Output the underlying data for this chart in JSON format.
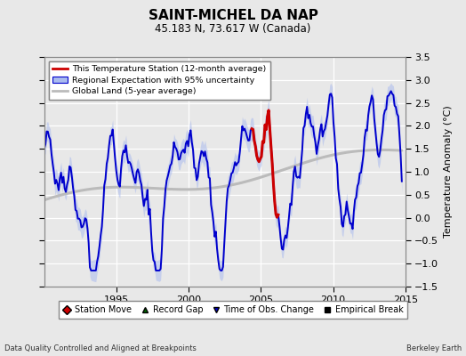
{
  "title": "SAINT-MICHEL DA NAP",
  "subtitle": "45.183 N, 73.617 W (Canada)",
  "ylabel": "Temperature Anomaly (°C)",
  "footer_left": "Data Quality Controlled and Aligned at Breakpoints",
  "footer_right": "Berkeley Earth",
  "xlim": [
    1990.0,
    2015.0
  ],
  "ylim": [
    -1.5,
    3.5
  ],
  "yticks": [
    -1.5,
    -1.0,
    -0.5,
    0.0,
    0.5,
    1.0,
    1.5,
    2.0,
    2.5,
    3.0,
    3.5
  ],
  "xticks": [
    1995,
    2000,
    2005,
    2010,
    2015
  ],
  "bg_color": "#e8e8e8",
  "grid_color": "#ffffff",
  "blue_line_color": "#0000cc",
  "blue_fill_color": "#aabbee",
  "red_line_color": "#cc0000",
  "gray_line_color": "#bbbbbb",
  "legend1_items": [
    "This Temperature Station (12-month average)",
    "Regional Expectation with 95% uncertainty",
    "Global Land (5-year average)"
  ],
  "marker_legend": [
    {
      "label": "Station Move",
      "marker": "D",
      "color": "#cc0000"
    },
    {
      "label": "Record Gap",
      "marker": "^",
      "color": "#006600"
    },
    {
      "label": "Time of Obs. Change",
      "marker": "v",
      "color": "#0000cc"
    },
    {
      "label": "Empirical Break",
      "marker": "s",
      "color": "#000000"
    }
  ]
}
